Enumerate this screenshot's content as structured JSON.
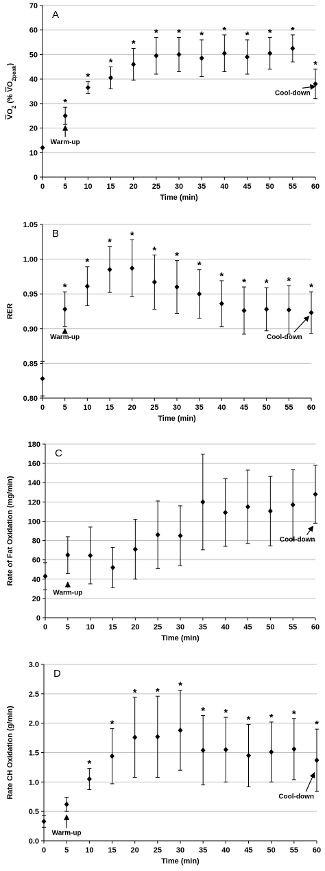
{
  "chart_data": [
    {
      "type": "scatter",
      "panel_label": "A",
      "xlabel": "Time (min)",
      "ylabel_parts": [
        "V",
        "O",
        "2",
        " (% ",
        "V",
        "O",
        "2peak",
        ")"
      ],
      "ylabel": "VO2 (% VO2peak)",
      "xlim": [
        0,
        60
      ],
      "ylim": [
        0,
        70
      ],
      "xticks": [
        0,
        5,
        10,
        15,
        20,
        25,
        30,
        35,
        40,
        45,
        50,
        55,
        60
      ],
      "yticks": [
        0,
        10,
        20,
        30,
        40,
        50,
        60,
        70
      ],
      "ytick_decimals": 0,
      "grid": true,
      "points": [
        {
          "x": 0,
          "y": 12,
          "err": 0,
          "sig": false
        },
        {
          "x": 5,
          "y": 25,
          "err": 3.5,
          "sig": true
        },
        {
          "x": 10,
          "y": 36.5,
          "err": 2.5,
          "sig": true
        },
        {
          "x": 15,
          "y": 40.5,
          "err": 4.5,
          "sig": true
        },
        {
          "x": 20,
          "y": 46,
          "err": 6.5,
          "sig": true
        },
        {
          "x": 25,
          "y": 49.5,
          "err": 7.5,
          "sig": true
        },
        {
          "x": 30,
          "y": 50,
          "err": 7,
          "sig": true
        },
        {
          "x": 35,
          "y": 48.5,
          "err": 7.5,
          "sig": true
        },
        {
          "x": 40,
          "y": 50.5,
          "err": 7.5,
          "sig": true
        },
        {
          "x": 45,
          "y": 49,
          "err": 7,
          "sig": true
        },
        {
          "x": 50,
          "y": 50.5,
          "err": 6.5,
          "sig": true
        },
        {
          "x": 55,
          "y": 52.5,
          "err": 5.5,
          "sig": true
        },
        {
          "x": 60,
          "y": 38,
          "err": 6,
          "sig": true
        }
      ],
      "annotations": {
        "warmup": {
          "text": "Warm-up",
          "x": 5,
          "y": 13.5,
          "arrow_to": [
            5,
            21
          ]
        },
        "cooldown": {
          "text": "Cool-down",
          "x": 55,
          "y": 33.5,
          "arrow_to": [
            60,
            37
          ]
        }
      }
    },
    {
      "type": "scatter",
      "panel_label": "B",
      "xlabel": "Time (min)",
      "ylabel": "RER",
      "xlim": [
        0,
        60
      ],
      "ylim": [
        0.8,
        1.05
      ],
      "xticks": [
        0,
        5,
        10,
        15,
        20,
        25,
        30,
        35,
        40,
        45,
        50,
        55,
        60
      ],
      "yticks": [
        0.8,
        0.85,
        0.9,
        0.95,
        1.0,
        1.05
      ],
      "ytick_decimals": 2,
      "grid": true,
      "points": [
        {
          "x": 0,
          "y": 0.828,
          "err": 0.025,
          "sig": false
        },
        {
          "x": 5,
          "y": 0.928,
          "err": 0.025,
          "sig": true
        },
        {
          "x": 10,
          "y": 0.961,
          "err": 0.028,
          "sig": true
        },
        {
          "x": 15,
          "y": 0.985,
          "err": 0.033,
          "sig": true
        },
        {
          "x": 20,
          "y": 0.987,
          "err": 0.041,
          "sig": true
        },
        {
          "x": 25,
          "y": 0.967,
          "err": 0.039,
          "sig": true
        },
        {
          "x": 30,
          "y": 0.96,
          "err": 0.038,
          "sig": true
        },
        {
          "x": 35,
          "y": 0.95,
          "err": 0.035,
          "sig": true
        },
        {
          "x": 40,
          "y": 0.936,
          "err": 0.033,
          "sig": true
        },
        {
          "x": 45,
          "y": 0.926,
          "err": 0.034,
          "sig": true
        },
        {
          "x": 50,
          "y": 0.928,
          "err": 0.031,
          "sig": true
        },
        {
          "x": 55,
          "y": 0.927,
          "err": 0.035,
          "sig": true
        },
        {
          "x": 60,
          "y": 0.923,
          "err": 0.03,
          "sig": true
        }
      ],
      "annotations": {
        "warmup": {
          "text": "Warm-up",
          "x": 5,
          "y": 0.885,
          "arrow_to": [
            5,
            0.9
          ]
        },
        "cooldown": {
          "text": "Cool-down",
          "x": 54,
          "y": 0.885,
          "arrow_to": [
            59.5,
            0.918
          ]
        }
      }
    },
    {
      "type": "scatter",
      "panel_label": "C",
      "xlabel": "Time (min)",
      "ylabel": "Rate of Fat Oxidation (mg/min)",
      "xlim": [
        0,
        60
      ],
      "ylim": [
        0,
        180
      ],
      "xticks": [
        0,
        5,
        10,
        15,
        20,
        25,
        30,
        35,
        40,
        45,
        50,
        55,
        60
      ],
      "yticks": [
        0,
        20,
        40,
        60,
        80,
        100,
        120,
        140,
        160,
        180
      ],
      "ytick_decimals": 0,
      "grid": true,
      "points": [
        {
          "x": 0,
          "y": 43,
          "err": 14,
          "sig": false
        },
        {
          "x": 5,
          "y": 65,
          "err": 19,
          "sig": false
        },
        {
          "x": 10,
          "y": 64.5,
          "err": 29.5,
          "sig": false
        },
        {
          "x": 15,
          "y": 52,
          "err": 21,
          "sig": false
        },
        {
          "x": 20,
          "y": 71,
          "err": 31,
          "sig": false
        },
        {
          "x": 25,
          "y": 86,
          "err": 35,
          "sig": false
        },
        {
          "x": 30,
          "y": 85,
          "err": 31,
          "sig": false
        },
        {
          "x": 35,
          "y": 120,
          "err": 49.5,
          "sig": false
        },
        {
          "x": 40,
          "y": 109,
          "err": 35,
          "sig": false
        },
        {
          "x": 45,
          "y": 115,
          "err": 38,
          "sig": false
        },
        {
          "x": 50,
          "y": 110.5,
          "err": 36,
          "sig": false
        },
        {
          "x": 55,
          "y": 117,
          "err": 36.5,
          "sig": false
        },
        {
          "x": 60,
          "y": 128,
          "err": 30,
          "sig": false
        }
      ],
      "annotations": {
        "warmup": {
          "text": "Warm-up",
          "x": 5,
          "y": 24,
          "arrow_to": [
            5,
            37
          ]
        },
        "cooldown": {
          "text": "Cool-down",
          "x": 56,
          "y": 79,
          "arrow_to": [
            59.5,
            95
          ]
        }
      }
    },
    {
      "type": "scatter",
      "panel_label": "D",
      "xlabel": "Time (min)",
      "ylabel": "Rate CH Oxidation (g/min)",
      "xlim": [
        0,
        60
      ],
      "ylim": [
        0,
        3.0
      ],
      "xticks": [
        0,
        5,
        10,
        15,
        20,
        25,
        30,
        35,
        40,
        45,
        50,
        55,
        60
      ],
      "yticks": [
        0,
        0.5,
        1.0,
        1.5,
        2.0,
        2.5,
        3.0
      ],
      "ytick_decimals": 1,
      "grid": true,
      "points": [
        {
          "x": 0,
          "y": 0.33,
          "err": 0.1,
          "sig": false
        },
        {
          "x": 5,
          "y": 0.62,
          "err": 0.12,
          "sig": false
        },
        {
          "x": 10,
          "y": 1.05,
          "err": 0.18,
          "sig": true
        },
        {
          "x": 15,
          "y": 1.44,
          "err": 0.47,
          "sig": true
        },
        {
          "x": 20,
          "y": 1.76,
          "err": 0.68,
          "sig": true
        },
        {
          "x": 25,
          "y": 1.77,
          "err": 0.69,
          "sig": true
        },
        {
          "x": 30,
          "y": 1.88,
          "err": 0.68,
          "sig": true
        },
        {
          "x": 35,
          "y": 1.54,
          "err": 0.59,
          "sig": true
        },
        {
          "x": 40,
          "y": 1.55,
          "err": 0.55,
          "sig": true
        },
        {
          "x": 45,
          "y": 1.45,
          "err": 0.53,
          "sig": true
        },
        {
          "x": 50,
          "y": 1.51,
          "err": 0.51,
          "sig": true
        },
        {
          "x": 55,
          "y": 1.56,
          "err": 0.52,
          "sig": true
        },
        {
          "x": 60,
          "y": 1.37,
          "err": 0.53,
          "sig": true
        }
      ],
      "annotations": {
        "warmup": {
          "text": "Warm-up",
          "x": 5,
          "y": 0.1,
          "arrow_to": [
            5,
            0.44
          ]
        },
        "cooldown": {
          "text": "Cool-down",
          "x": 55.5,
          "y": 0.72,
          "arrow_to": [
            59.5,
            1.16
          ]
        }
      }
    }
  ],
  "significance_marker": "*",
  "colors": {
    "marker": "#000000",
    "error_bar": "#000000",
    "grid": "#bfbfbf",
    "axis": "#000000"
  }
}
